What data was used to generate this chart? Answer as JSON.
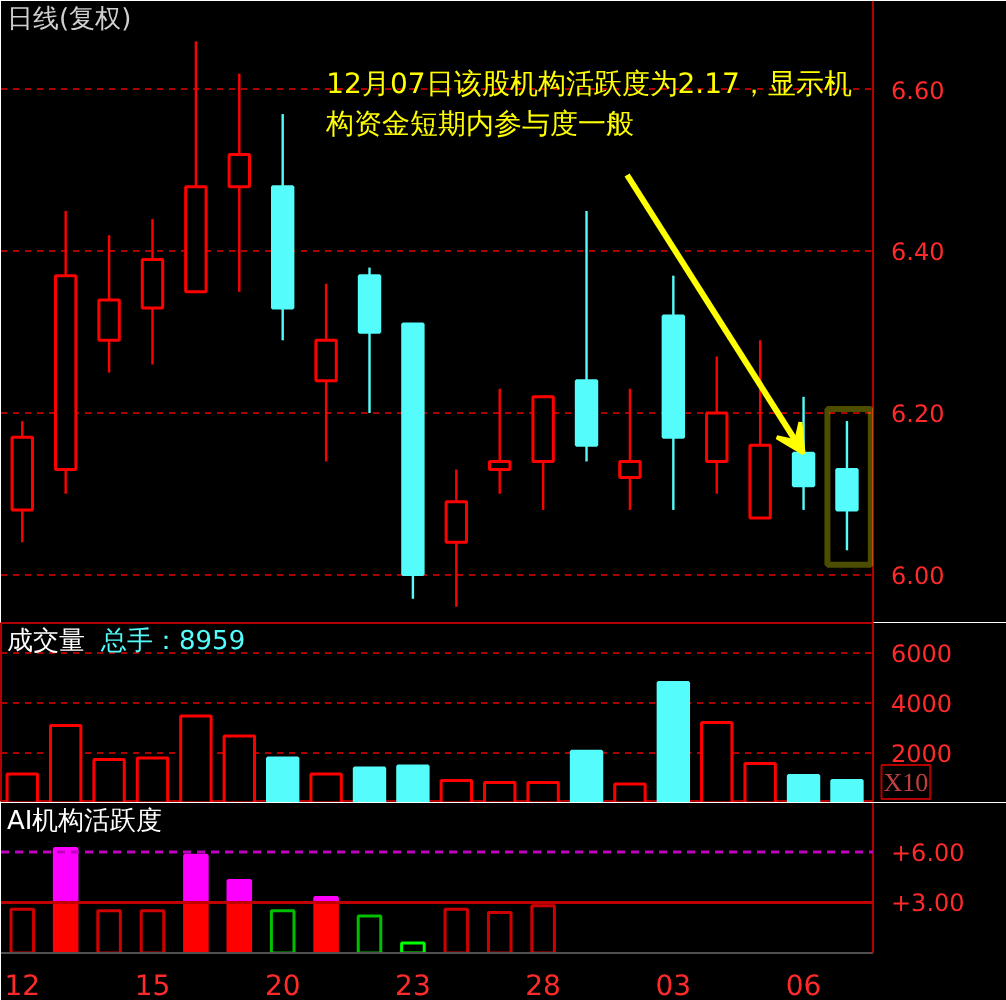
{
  "chart_data": [
    {
      "type": "candlestick",
      "title": "日线(复权)",
      "annotations": [
        {
          "text": "12月07日该股机构活跃度为2.17，显示机构资金短期内参与度一般",
          "x": "06",
          "y": 6.15
        }
      ],
      "categories": [
        "12",
        null,
        null,
        "15",
        null,
        null,
        "20",
        null,
        null,
        "23",
        null,
        null,
        "28",
        null,
        null,
        "03",
        null,
        null,
        "06",
        null
      ],
      "ohlc": [
        [
          6.08,
          6.19,
          6.04,
          6.17
        ],
        [
          6.13,
          6.45,
          6.1,
          6.37
        ],
        [
          6.29,
          6.42,
          6.25,
          6.34
        ],
        [
          6.33,
          6.44,
          6.26,
          6.39
        ],
        [
          6.35,
          6.66,
          6.35,
          6.48
        ],
        [
          6.48,
          6.62,
          6.35,
          6.52
        ],
        [
          6.48,
          6.57,
          6.29,
          6.33
        ],
        [
          6.24,
          6.36,
          6.14,
          6.29
        ],
        [
          6.37,
          6.38,
          6.2,
          6.3
        ],
        [
          6.31,
          6.31,
          5.97,
          6.0
        ],
        [
          6.04,
          6.13,
          5.96,
          6.09
        ],
        [
          6.13,
          6.23,
          6.1,
          6.14
        ],
        [
          6.14,
          6.22,
          6.08,
          6.22
        ],
        [
          6.24,
          6.45,
          6.14,
          6.16
        ],
        [
          6.12,
          6.23,
          6.08,
          6.14
        ],
        [
          6.32,
          6.37,
          6.08,
          6.17
        ],
        [
          6.14,
          6.27,
          6.1,
          6.2
        ],
        [
          6.07,
          6.29,
          6.07,
          6.16
        ],
        [
          6.15,
          6.22,
          6.08,
          6.11
        ],
        [
          6.13,
          6.19,
          6.03,
          6.08
        ]
      ],
      "colors": [
        "#ff0000",
        "#ff0000",
        "#ff0000",
        "#ff0000",
        "#ff0000",
        "#ff0000",
        "#54fcfc",
        "#ff0000",
        "#54fcfc",
        "#54fcfc",
        "#ff0000",
        "#ff0000",
        "#ff0000",
        "#54fcfc",
        "#ff0000",
        "#54fcfc",
        "#ff0000",
        "#ff0000",
        "#54fcfc",
        "#54fcfc"
      ],
      "ylim": [
        5.94,
        6.71
      ],
      "yticks": [
        {
          "value": 6,
          "label": "6.00"
        },
        {
          "value": 6.2,
          "label": "6.20"
        },
        {
          "value": 6.4,
          "label": "6.40"
        },
        {
          "value": 6.6,
          "label": "6.60"
        }
      ],
      "grid": "y",
      "tick_labels": "y"
    },
    {
      "type": "bar",
      "title": "成交量",
      "subtitle": "总手：8959",
      "ylabel": "X10",
      "categories": [
        "12",
        null,
        null,
        "15",
        null,
        null,
        "20",
        null,
        null,
        "23",
        null,
        null,
        "28",
        null,
        null,
        "03",
        null,
        null,
        "06",
        null
      ],
      "values": [
        1160,
        3100,
        1740,
        1800,
        3480,
        2680,
        1800,
        1160,
        1400,
        1480,
        900,
        820,
        820,
        2070,
        760,
        4820,
        3220,
        1580,
        1100,
        900
      ],
      "colors": [
        "#ff0000",
        "#ff0000",
        "#ff0000",
        "#ff0000",
        "#ff0000",
        "#ff0000",
        "#54fcfc",
        "#ff0000",
        "#54fcfc",
        "#54fcfc",
        "#ff0000",
        "#ff0000",
        "#ff0000",
        "#54fcfc",
        "#ff0000",
        "#54fcfc",
        "#ff0000",
        "#ff0000",
        "#54fcfc",
        "#54fcfc"
      ],
      "ylim": [
        0,
        7200
      ],
      "yticks": [
        2000,
        4000,
        6000
      ],
      "grid": "y",
      "tick_labels": "y"
    },
    {
      "type": "bar",
      "title": "AI机构活跃度",
      "stacked": true,
      "categories": [
        "12",
        null,
        null,
        "15",
        null,
        null,
        "20",
        null,
        null,
        "23",
        null,
        null,
        "28",
        null,
        null,
        "03",
        null,
        null,
        "06",
        null
      ],
      "series": [
        {
          "values": [
            2.6,
            3,
            2.5,
            2.5,
            3,
            3,
            2.5,
            3,
            2.2,
            0.6,
            2.6,
            2.4,
            2.8,
            null,
            null,
            null,
            null,
            null,
            null,
            null
          ],
          "colors": [
            "#d00000",
            "#ff0000",
            "#d00000",
            "#d00000",
            "#ff0000",
            "#ff0000",
            "#00c000",
            "#ff0000",
            "#00c000",
            "#00ff00",
            "#d00000",
            "#d00000",
            "#d00000",
            null,
            null,
            null,
            null,
            null,
            null,
            null
          ]
        },
        {
          "color": "#ff00ff",
          "values": [
            null,
            3.2,
            null,
            null,
            2.8,
            1.3,
            null,
            0.3,
            null,
            null,
            null,
            null,
            null,
            null,
            null,
            null,
            null,
            null,
            null,
            null
          ]
        }
      ],
      "ylim": [
        0,
        8.9
      ],
      "yticks": [
        {
          "value": 3,
          "label": "+3.00"
        },
        {
          "value": 6,
          "label": "+6.00"
        }
      ],
      "ref_lines": [
        {
          "axis": "y",
          "value": 3,
          "color": "#c00000",
          "line_style": "solid"
        },
        {
          "axis": "y",
          "value": 6,
          "color": "#c000c0",
          "line_style": "dashed"
        }
      ]
    }
  ]
}
